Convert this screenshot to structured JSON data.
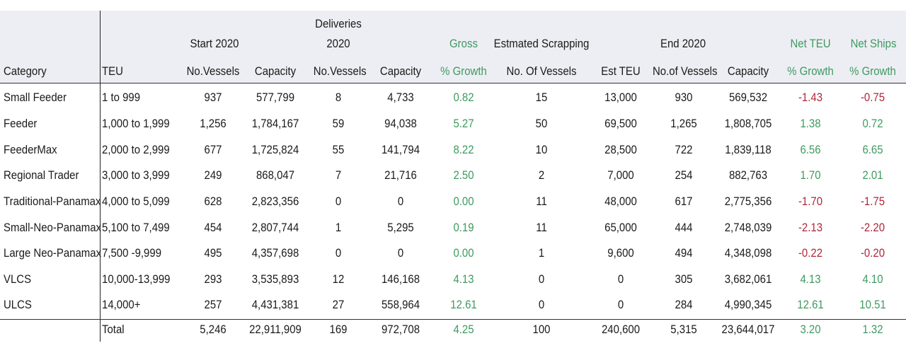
{
  "colors": {
    "header_bg": "#edeef3",
    "positive": "#3e9a61",
    "negative": "#b0263a"
  },
  "group_headers": {
    "start": "Start 2020",
    "deliveries_line1": "Deliveries",
    "deliveries_line2": "2020",
    "gross": "Gross",
    "scrapping": "Estmated Scrapping",
    "end": "End 2020",
    "net_teu": "Net TEU",
    "net_ships": "Net Ships"
  },
  "columns": [
    "Category",
    "TEU",
    "No.Vessels",
    "Capacity",
    "No.Vessels",
    "Capacity",
    "% Growth",
    "No. Of Vessels",
    "Est TEU",
    "No.of Vessels",
    "Capacity",
    "% Growth",
    "% Growth"
  ],
  "rows": [
    [
      "Small Feeder",
      "1 to 999",
      "937",
      "577,799",
      "8",
      "4,733",
      "0.82",
      "15",
      "13,000",
      "930",
      "569,532",
      "-1.43",
      "-0.75"
    ],
    [
      "Feeder",
      "1,000 to 1,999",
      "1,256",
      "1,784,167",
      "59",
      "94,038",
      "5.27",
      "50",
      "69,500",
      "1,265",
      "1,808,705",
      "1.38",
      "0.72"
    ],
    [
      "FeederMax",
      "2,000 to 2,999",
      "677",
      "1,725,824",
      "55",
      "141,794",
      "8.22",
      "10",
      "28,500",
      "722",
      "1,839,118",
      "6.56",
      "6.65"
    ],
    [
      "Regional Trader",
      "3,000 to 3,999",
      "249",
      "868,047",
      "7",
      "21,716",
      "2.50",
      "2",
      "7,000",
      "254",
      "882,763",
      "1.70",
      "2.01"
    ],
    [
      "Traditional-Panamax",
      "4,000 to 5,099",
      "628",
      "2,823,356",
      "0",
      "0",
      "0.00",
      "11",
      "48,000",
      "617",
      "2,775,356",
      "-1.70",
      "-1.75"
    ],
    [
      "Small-Neo-Panamax",
      "5,100 to 7,499",
      "454",
      "2,807,744",
      "1",
      "5,295",
      "0.19",
      "11",
      "65,000",
      "444",
      "2,748,039",
      "-2.13",
      "-2.20"
    ],
    [
      "Large Neo-Panamax",
      "7,500 -9,999",
      "495",
      "4,357,698",
      "0",
      "0",
      "0.00",
      "1",
      "9,600",
      "494",
      "4,348,098",
      "-0.22",
      "-0.20"
    ],
    [
      "VLCS",
      "10,000-13,999",
      "293",
      "3,535,893",
      "12",
      "146,168",
      "4.13",
      "0",
      "0",
      "305",
      "3,682,061",
      "4.13",
      "4.10"
    ],
    [
      "ULCS",
      "14,000+",
      "257",
      "4,431,381",
      "27",
      "558,964",
      "12.61",
      "0",
      "0",
      "284",
      "4,990,345",
      "12.61",
      "10.51"
    ]
  ],
  "total": [
    "",
    "Total",
    "5,246",
    "22,911,909",
    "169",
    "972,708",
    "4.25",
    "100",
    "240,600",
    "5,315",
    "23,644,017",
    "3.20",
    "1.32"
  ]
}
